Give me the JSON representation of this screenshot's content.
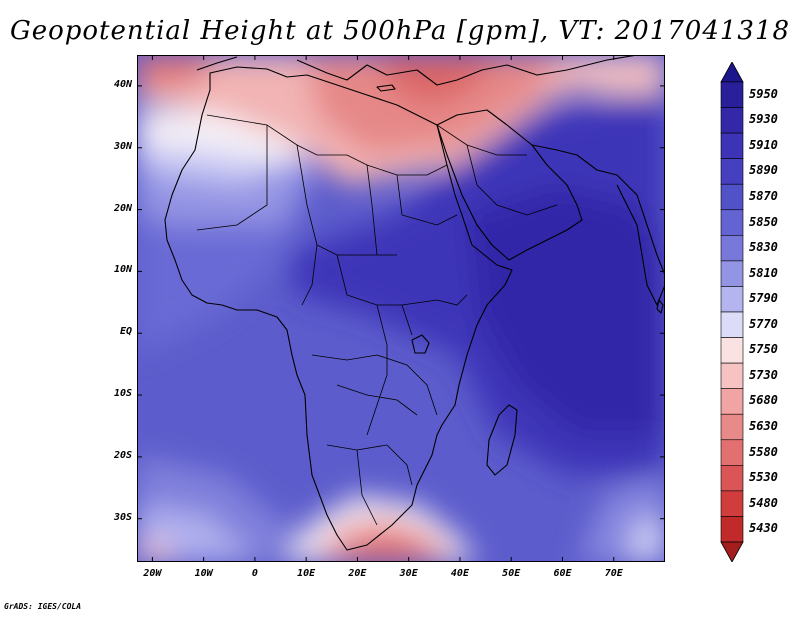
{
  "title": "Geopotential Height at 500hPa [gpm], VT: 2017041318",
  "credit": "GrADS: IGES/COLA",
  "map": {
    "lon_range": [
      -23,
      80
    ],
    "lat_range": [
      -37,
      45
    ],
    "y_ticks": [
      {
        "lat": 40,
        "label": "40N"
      },
      {
        "lat": 30,
        "label": "30N"
      },
      {
        "lat": 20,
        "label": "20N"
      },
      {
        "lat": 10,
        "label": "10N"
      },
      {
        "lat": 0,
        "label": "EQ"
      },
      {
        "lat": -10,
        "label": "10S"
      },
      {
        "lat": -20,
        "label": "20S"
      },
      {
        "lat": -30,
        "label": "30S"
      }
    ],
    "x_ticks": [
      {
        "lon": -20,
        "label": "20W"
      },
      {
        "lon": -10,
        "label": "10W"
      },
      {
        "lon": 0,
        "label": "0"
      },
      {
        "lon": 10,
        "label": "10E"
      },
      {
        "lon": 20,
        "label": "20E"
      },
      {
        "lon": 30,
        "label": "30E"
      },
      {
        "lon": 40,
        "label": "40E"
      },
      {
        "lon": 50,
        "label": "50E"
      },
      {
        "lon": 60,
        "label": "60E"
      },
      {
        "lon": 70,
        "label": "70E"
      }
    ]
  },
  "colorbar": {
    "levels": [
      {
        "label": "5950",
        "color": "#2a1f9a"
      },
      {
        "label": "5930",
        "color": "#3428a8"
      },
      {
        "label": "5910",
        "color": "#3c33b6"
      },
      {
        "label": "5890",
        "color": "#4640c0"
      },
      {
        "label": "5870",
        "color": "#5252c8"
      },
      {
        "label": "5850",
        "color": "#6363d2"
      },
      {
        "label": "5830",
        "color": "#7878da"
      },
      {
        "label": "5810",
        "color": "#9494e4"
      },
      {
        "label": "5790",
        "color": "#b4b4ee"
      },
      {
        "label": "5770",
        "color": "#dcdcf8"
      },
      {
        "label": "5750",
        "color": "#fbe2e2"
      },
      {
        "label": "5730",
        "color": "#f6c2c2"
      },
      {
        "label": "5680",
        "color": "#f0a4a4"
      },
      {
        "label": "5630",
        "color": "#e98a8a"
      },
      {
        "label": "5580",
        "color": "#e27070"
      },
      {
        "label": "5530",
        "color": "#da5555"
      },
      {
        "label": "5480",
        "color": "#d13d3d"
      },
      {
        "label": "5430",
        "color": "#c02a2a"
      }
    ],
    "top_triangle_color": "#1c168c",
    "bottom_triangle_color": "#a41e1e"
  }
}
